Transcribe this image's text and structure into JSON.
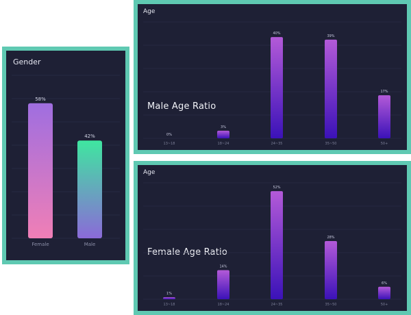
{
  "chart_data": [
    {
      "type": "bar",
      "title": "Gender",
      "categories": [
        "Female",
        "Male"
      ],
      "values": [
        58,
        42
      ],
      "value_labels": [
        "58%",
        "42%"
      ],
      "ylim": [
        0,
        70
      ],
      "grid": true,
      "colors": {
        "female_top": "#9f6ee0",
        "female_bottom": "#f07fb6",
        "male_top": "#3fe6a0",
        "male_bottom": "#8b6ad8"
      }
    },
    {
      "type": "bar",
      "title": "Age",
      "subtitle": "Male Age Ratio",
      "categories": [
        "13~18",
        "18~24",
        "24~35",
        "35~50",
        "50+"
      ],
      "values": [
        0,
        3,
        40,
        39,
        17
      ],
      "value_labels": [
        "0%",
        "3%",
        "40%",
        "39%",
        "17%"
      ],
      "ylim": [
        0,
        46
      ],
      "grid": true,
      "colors": {
        "top": "#b35ad8",
        "bottom": "#3b12b8"
      }
    },
    {
      "type": "bar",
      "title": "Age",
      "subtitle": "Female Age Ratio",
      "categories": [
        "13~18",
        "18~24",
        "24~35",
        "35~50",
        "50+"
      ],
      "values": [
        1,
        14,
        52,
        28,
        6
      ],
      "value_labels": [
        "1%",
        "14%",
        "52%",
        "28%",
        "6%"
      ],
      "ylim": [
        0,
        56
      ],
      "grid": true,
      "colors": {
        "top": "#b35ad8",
        "bottom": "#3b12b8"
      }
    }
  ]
}
